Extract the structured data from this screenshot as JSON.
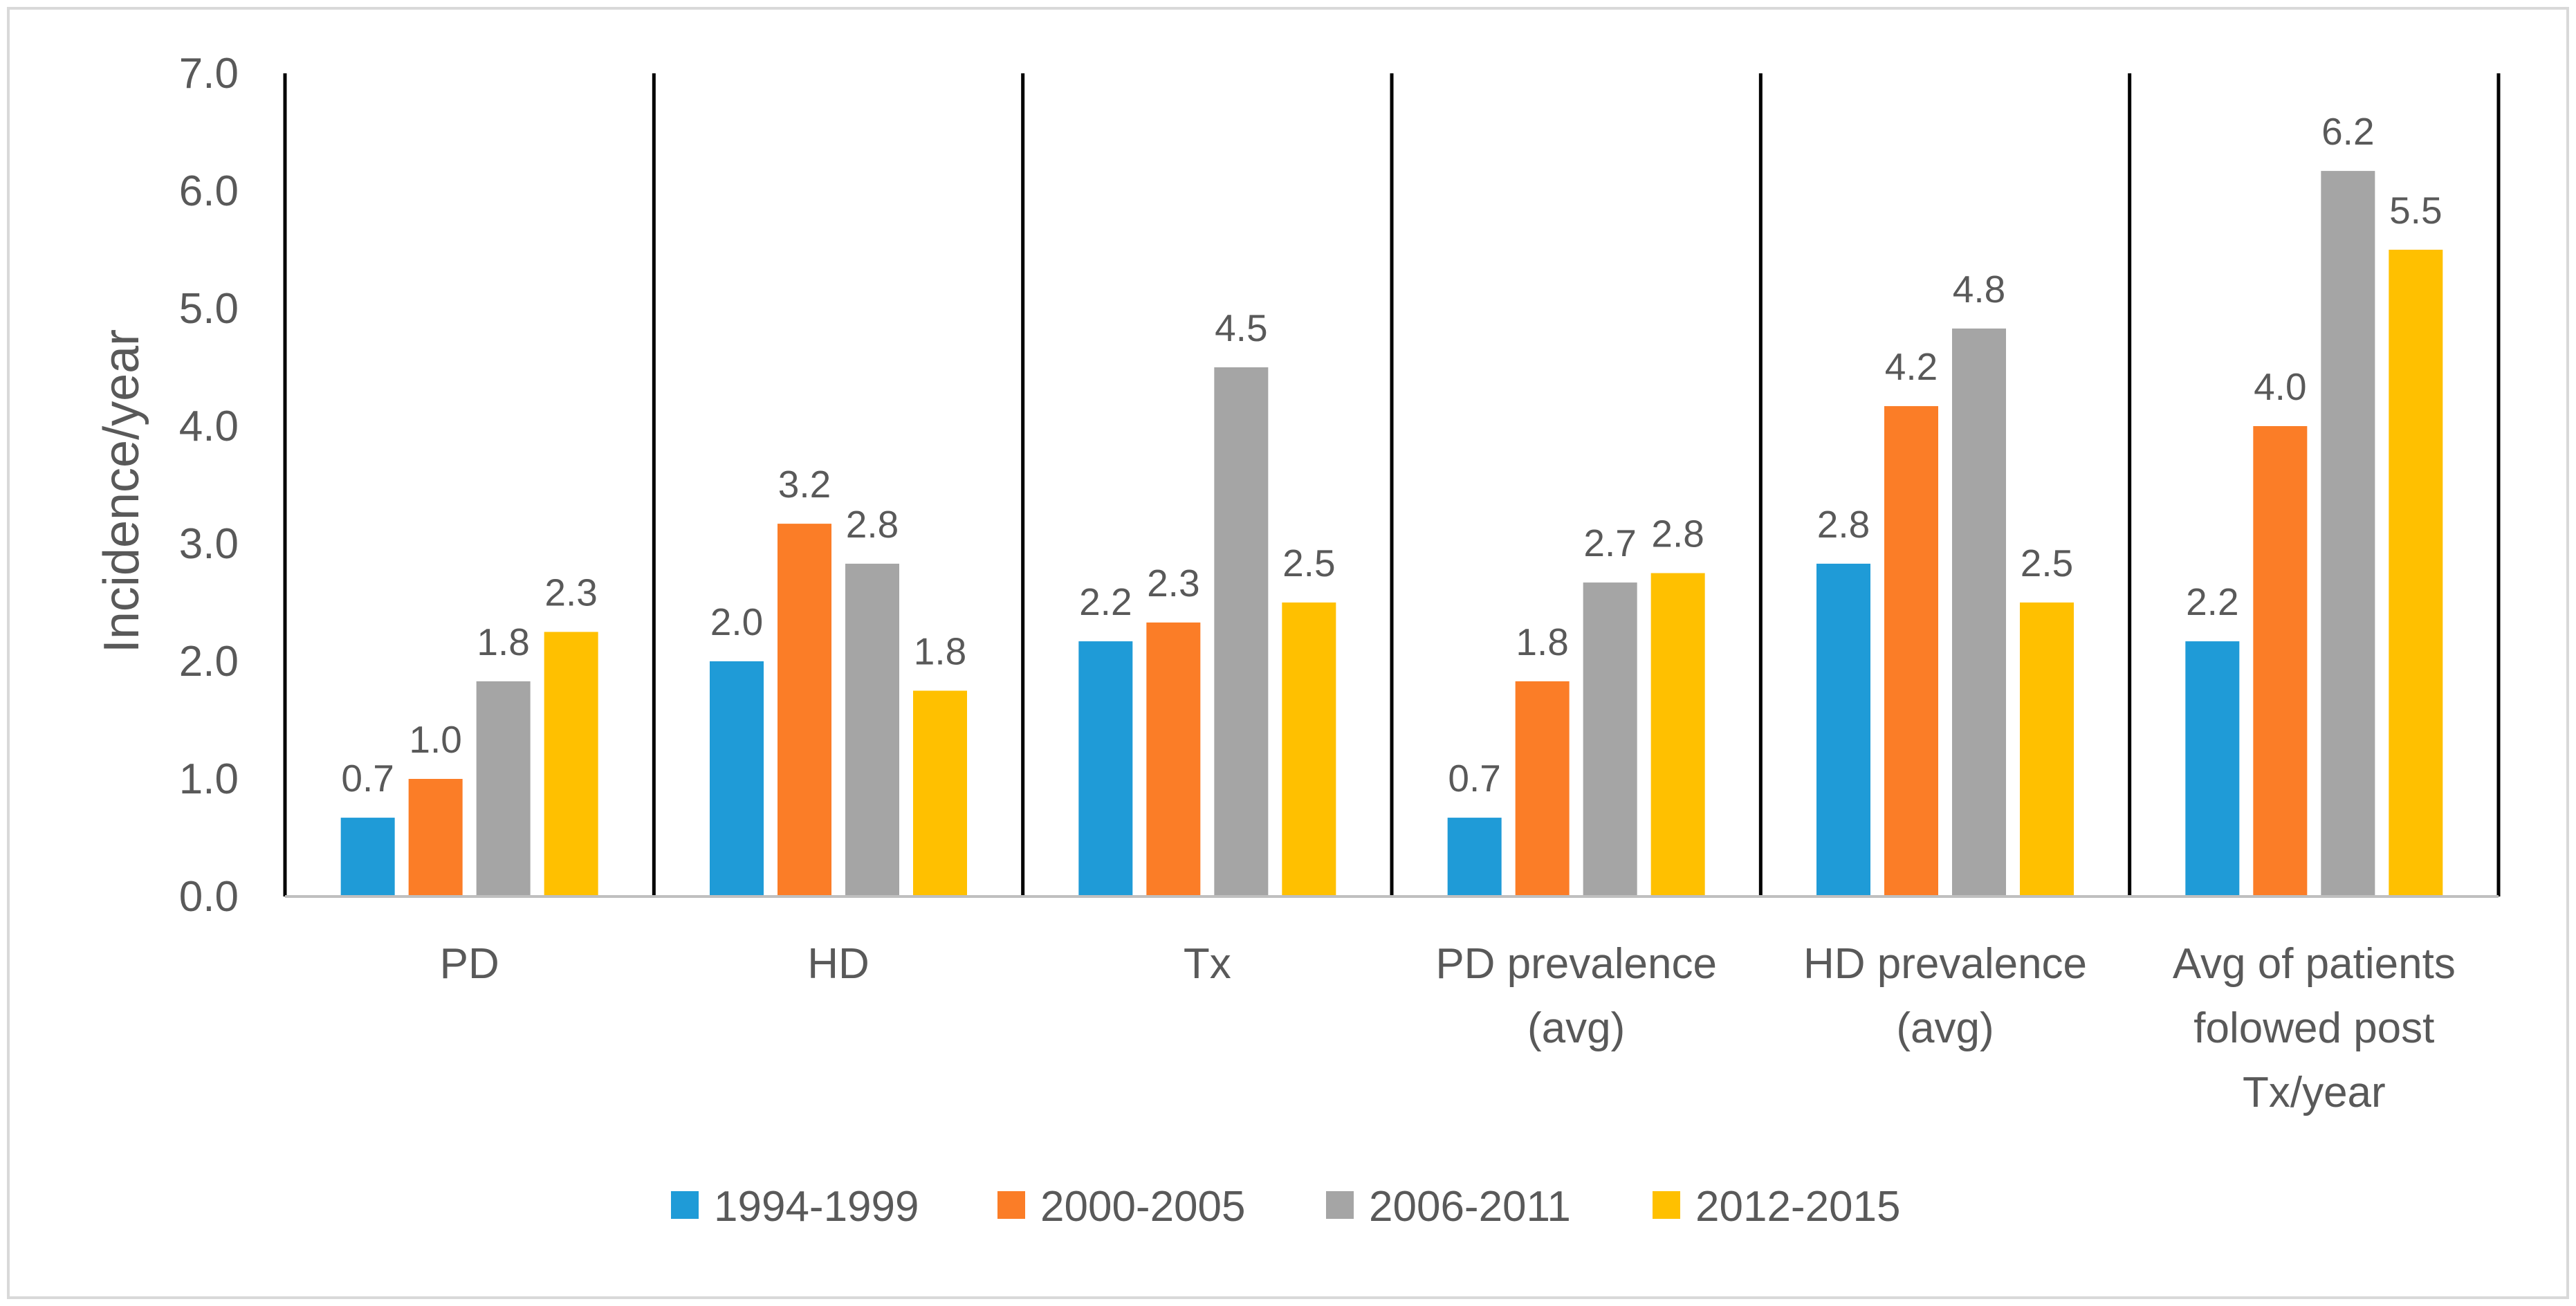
{
  "chart_data": {
    "type": "bar",
    "title": "",
    "xlabel": "",
    "ylabel": "Incidence/year",
    "ylim": [
      0,
      7
    ],
    "yticks": [
      "0.0",
      "1.0",
      "2.0",
      "3.0",
      "4.0",
      "5.0",
      "6.0",
      "7.0"
    ],
    "categories": [
      [
        "PD"
      ],
      [
        "HD"
      ],
      [
        "Tx"
      ],
      [
        "PD prevalence",
        "(avg)"
      ],
      [
        "HD prevalence",
        "(avg)"
      ],
      [
        "Avg of patients",
        "folowed post",
        "Tx/year"
      ]
    ],
    "series": [
      {
        "name": "1994-1999",
        "color": "#1f9bd7",
        "values": [
          0.67,
          2.0,
          2.17,
          0.67,
          2.83,
          2.17
        ],
        "labels": [
          "0.7",
          "2.0",
          "2.2",
          "0.7",
          "2.8",
          "2.2"
        ]
      },
      {
        "name": "2000-2005",
        "color": "#fb7d27",
        "values": [
          1.0,
          3.17,
          2.33,
          1.83,
          4.17,
          4.0
        ],
        "labels": [
          "1.0",
          "3.2",
          "2.3",
          "1.8",
          "4.2",
          "4.0"
        ]
      },
      {
        "name": "2006-2011",
        "color": "#a5a5a5",
        "values": [
          1.83,
          2.83,
          4.5,
          2.67,
          4.83,
          6.17
        ],
        "labels": [
          "1.8",
          "2.8",
          "4.5",
          "2.7",
          "4.8",
          "6.2"
        ]
      },
      {
        "name": "2012-2015",
        "color": "#ffc000",
        "values": [
          2.25,
          1.75,
          2.5,
          2.75,
          2.5,
          5.5
        ],
        "labels": [
          "2.3",
          "1.8",
          "2.5",
          "2.8",
          "2.5",
          "5.5"
        ]
      }
    ],
    "legend_position": "bottom",
    "grid": false
  }
}
